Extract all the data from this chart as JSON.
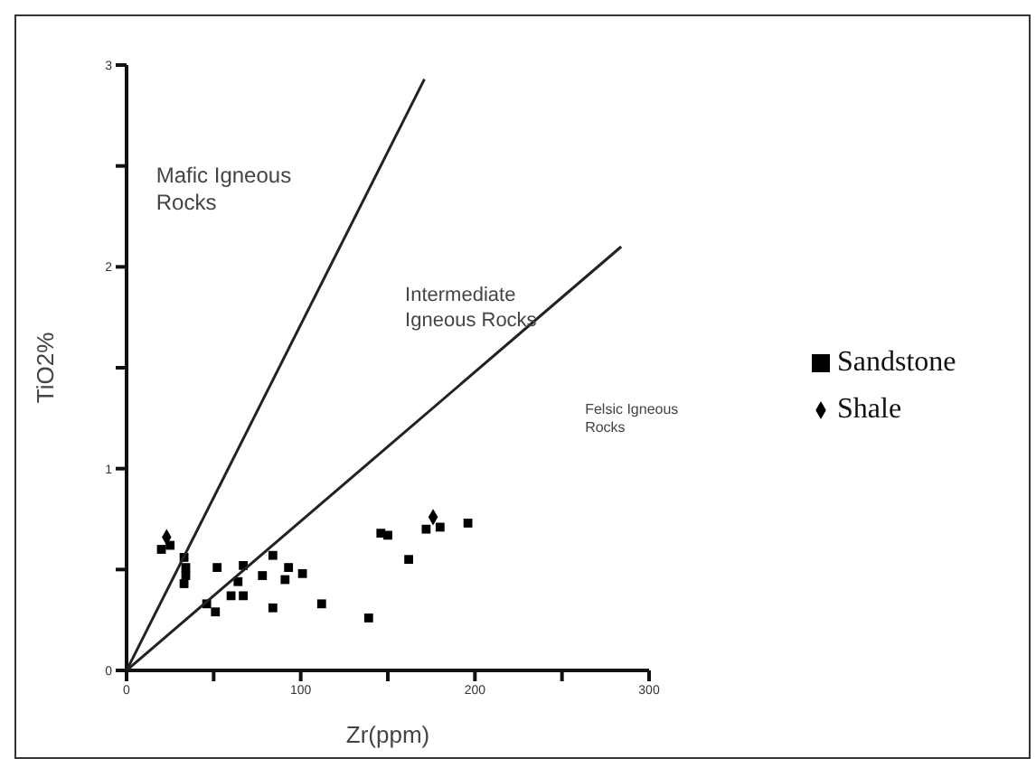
{
  "chart_data": {
    "type": "scatter",
    "xlabel": "Zr(ppm)",
    "ylabel": "TiO2%",
    "xlim": [
      0,
      300
    ],
    "xticks": [
      0,
      {
        "value": 50,
        "label": null
      },
      100,
      {
        "value": 150,
        "label": null
      },
      200,
      {
        "value": 250,
        "label": null
      },
      300
    ],
    "ylim": [
      0,
      3
    ],
    "yticks": [
      0,
      {
        "value": 0.5,
        "label": null
      },
      1,
      {
        "value": 1.5,
        "label": null
      },
      2,
      {
        "value": 2.5,
        "label": null
      },
      3
    ],
    "legend": "right",
    "grid": false,
    "annotations": [
      "Mafic Igneous\nRocks",
      "Intermediate\nIgneous Rocks",
      "Felsic Igneous\nRocks"
    ],
    "series": [
      {
        "name": "Sandstone",
        "color": "#000000",
        "marker": "square",
        "x": [
          20,
          25,
          33,
          34,
          33,
          34,
          46,
          51,
          52,
          60,
          64,
          67,
          67,
          78,
          84,
          84,
          91,
          93,
          101,
          112,
          139,
          146,
          150,
          162,
          172,
          180,
          196
        ],
        "values": [
          0.6,
          0.62,
          0.56,
          0.51,
          0.43,
          0.47,
          0.33,
          0.29,
          0.51,
          0.37,
          0.44,
          0.52,
          0.37,
          0.47,
          0.57,
          0.31,
          0.45,
          0.51,
          0.48,
          0.33,
          0.26,
          0.68,
          0.67,
          0.55,
          0.7,
          0.71,
          0.73
        ]
      },
      {
        "name": "Shale",
        "color": "#000000",
        "marker": "diamond",
        "x": [
          23,
          176
        ],
        "values": [
          0.66,
          0.76
        ]
      },
      {
        "type": "line",
        "color": "#222222",
        "marker": "none",
        "x": [
          0,
          171
        ],
        "values": [
          0,
          2.93
        ]
      },
      {
        "type": "line",
        "color": "#222222",
        "marker": "none",
        "x": [
          0,
          284
        ],
        "values": [
          0,
          2.1
        ]
      }
    ]
  }
}
